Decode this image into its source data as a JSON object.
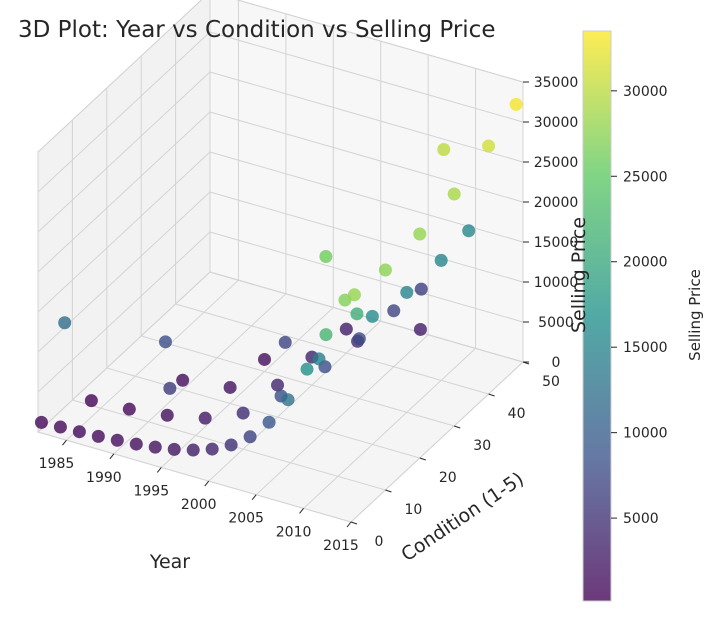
{
  "chart_data": {
    "type": "scatter",
    "projection": "3d",
    "title": "3D Plot: Year vs Condition vs Selling Price",
    "xlabel": "Year",
    "ylabel": "Condition (1-5)",
    "zlabel": "Selling Price",
    "x_ticks": [
      "1985",
      "1990",
      "1995",
      "2000",
      "2005",
      "2010",
      "2015"
    ],
    "y_ticks": [
      "0",
      "10",
      "20",
      "30",
      "40",
      "50"
    ],
    "z_ticks": [
      "0",
      "5000",
      "10000",
      "15000",
      "20000",
      "25000",
      "30000",
      "35000"
    ],
    "xlim": [
      1982,
      2015
    ],
    "ylim": [
      0,
      50
    ],
    "zlim": [
      0,
      35000
    ],
    "colorbar": {
      "label": "Selling Price",
      "ticks": [
        "5000",
        "10000",
        "15000",
        "20000",
        "25000",
        "30000"
      ],
      "range": [
        150,
        33500
      ],
      "colormap": "viridis"
    },
    "grid": true,
    "series": [
      {
        "x": [
          1982,
          1984,
          1986,
          1988,
          1990,
          1992,
          1994,
          1996,
          1998,
          2000,
          2002,
          2004,
          2006,
          2008,
          2010,
          2012,
          2014,
          2015,
          1984,
          1988,
          1992,
          1996,
          2000,
          2004,
          2008,
          2012,
          2015,
          1990,
          1995,
          2000,
          2005,
          2010,
          2015,
          1995,
          2000,
          2005,
          2010,
          2015,
          2000,
          2005,
          2010,
          2015,
          2005,
          2010,
          2015,
          1983,
          1990,
          1993,
          1999,
          2003,
          2006,
          2008,
          2011
        ],
        "y": [
          1,
          1,
          1,
          1,
          1,
          1,
          1,
          1,
          1,
          1,
          1,
          1,
          1,
          1,
          1,
          1,
          1,
          1,
          10,
          10,
          10,
          10,
          10,
          10,
          10,
          10,
          10,
          20,
          20,
          20,
          20,
          20,
          20,
          30,
          30,
          30,
          30,
          30,
          40,
          40,
          40,
          40,
          48,
          48,
          48,
          5,
          15,
          8,
          25,
          35,
          45,
          12,
          38
        ],
        "z": [
          800,
          900,
          1000,
          1100,
          1300,
          1500,
          1800,
          2200,
          2800,
          3600,
          4800,
          6500,
          9000,
          12500,
          17000,
          22000,
          27000,
          28000,
          600,
          900,
          1500,
          2500,
          4500,
          8000,
          14000,
          21000,
          27500,
          1200,
          2000,
          4000,
          8000,
          16000,
          28000,
          1500,
          3500,
          7500,
          15000,
          29000,
          3000,
          7000,
          15000,
          31000,
          6500,
          15500,
          33000,
          12000,
          8000,
          6000,
          7000,
          4500,
          3000,
          26000,
          30000
        ]
      }
    ]
  }
}
